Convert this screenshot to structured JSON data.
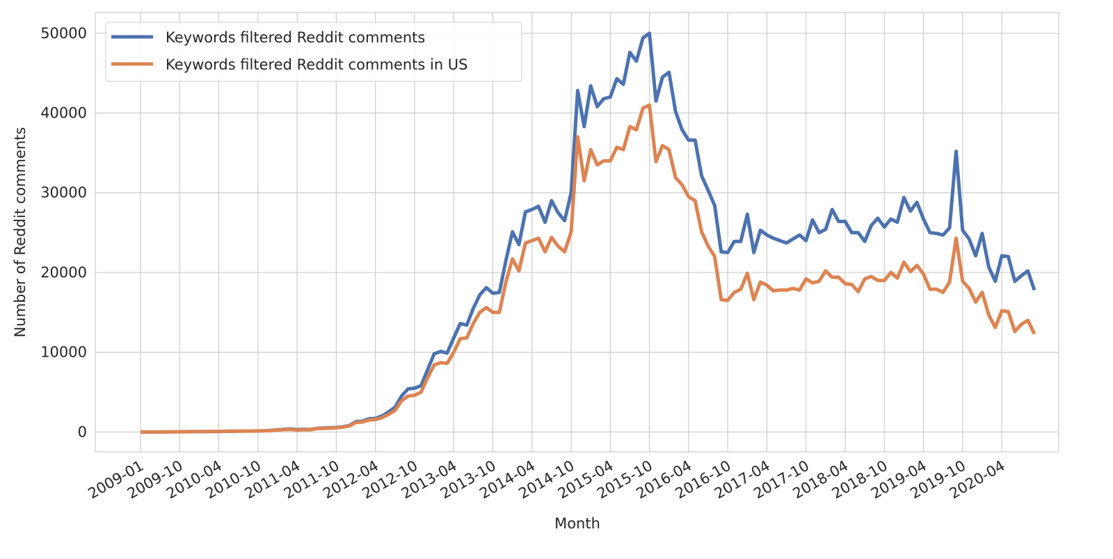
{
  "chart_data": {
    "type": "line",
    "x_label": "Month",
    "y_label": "Number of Reddit comments",
    "categories": [
      "2009-01",
      null,
      null,
      null,
      null,
      null,
      "2009-10",
      null,
      null,
      null,
      null,
      null,
      "2010-04",
      null,
      null,
      null,
      null,
      null,
      "2010-10",
      null,
      null,
      null,
      null,
      null,
      "2011-04",
      null,
      null,
      null,
      null,
      null,
      "2011-10",
      null,
      null,
      null,
      null,
      null,
      "2012-04",
      null,
      null,
      null,
      null,
      null,
      "2012-10",
      null,
      null,
      null,
      null,
      null,
      "2013-04",
      null,
      null,
      null,
      null,
      null,
      "2013-10",
      null,
      null,
      null,
      null,
      null,
      "2014-04",
      null,
      null,
      null,
      null,
      null,
      "2014-10",
      null,
      null,
      null,
      null,
      null,
      "2015-04",
      null,
      null,
      null,
      null,
      null,
      "2015-10",
      null,
      null,
      null,
      null,
      null,
      "2016-04",
      null,
      null,
      null,
      null,
      null,
      "2016-10",
      null,
      null,
      null,
      null,
      null,
      "2017-04",
      null,
      null,
      null,
      null,
      null,
      "2017-10",
      null,
      null,
      null,
      null,
      null,
      "2018-04",
      null,
      null,
      null,
      null,
      null,
      "2018-10",
      null,
      null,
      null,
      null,
      null,
      "2019-04",
      null,
      null,
      null,
      null,
      null,
      "2019-10",
      null,
      null,
      null,
      null,
      null,
      "2020-04",
      null,
      null,
      null,
      null,
      null
    ],
    "series": [
      {
        "name": "Keywords filtered Reddit comments",
        "color": "#4c72b0",
        "values": [
          0,
          0,
          0,
          0,
          10,
          20,
          30,
          40,
          50,
          50,
          50,
          60,
          60,
          80,
          90,
          100,
          110,
          120,
          130,
          150,
          200,
          280,
          330,
          380,
          300,
          350,
          300,
          450,
          500,
          520,
          560,
          650,
          800,
          1300,
          1350,
          1650,
          1700,
          2000,
          2500,
          3100,
          4500,
          5400,
          5500,
          5800,
          7800,
          9800,
          10100,
          9900,
          11800,
          13600,
          13400,
          15500,
          17200,
          18100,
          17400,
          17500,
          21500,
          25100,
          23500,
          27600,
          27900,
          28300,
          26300,
          29000,
          27500,
          26500,
          30000,
          42800,
          38300,
          43400,
          40800,
          41800,
          42000,
          44300,
          43600,
          47600,
          46500,
          49400,
          50000,
          41500,
          44500,
          45100,
          40200,
          37900,
          36600,
          36600,
          32100,
          30300,
          28400,
          22600,
          22500,
          23900,
          23900,
          27300,
          22500,
          25300,
          24700,
          24300,
          24000,
          23700,
          24200,
          24700,
          24000,
          26600,
          25000,
          25400,
          27900,
          26400,
          26400,
          25000,
          25000,
          23900,
          25900,
          26800,
          25700,
          26700,
          26300,
          29400,
          27700,
          28800,
          26700,
          25000,
          24900,
          24700,
          25600,
          35200,
          25300,
          24200,
          22100,
          24900,
          20700,
          18900,
          22100,
          22000,
          18900,
          19600,
          20200,
          17800
        ]
      },
      {
        "name": "Keywords filtered Reddit comments in US",
        "color": "#dd8452",
        "values": [
          0,
          0,
          0,
          0,
          10,
          20,
          30,
          40,
          50,
          50,
          50,
          60,
          60,
          80,
          90,
          100,
          110,
          120,
          130,
          150,
          180,
          250,
          300,
          320,
          250,
          300,
          280,
          420,
          450,
          480,
          520,
          600,
          750,
          1200,
          1250,
          1500,
          1550,
          1800,
          2200,
          2700,
          3900,
          4500,
          4600,
          5000,
          6800,
          8400,
          8700,
          8600,
          10000,
          11700,
          11800,
          13600,
          15000,
          15600,
          15000,
          15000,
          18800,
          21700,
          20200,
          23700,
          24000,
          24300,
          22600,
          24400,
          23300,
          22600,
          25100,
          37000,
          31500,
          35400,
          33500,
          34000,
          34000,
          35700,
          35400,
          38300,
          37900,
          40600,
          41000,
          33900,
          35900,
          35400,
          31900,
          31000,
          29500,
          29000,
          25100,
          23300,
          22000,
          16600,
          16500,
          17500,
          17900,
          19900,
          16600,
          18800,
          18400,
          17700,
          17800,
          17800,
          18000,
          17800,
          19200,
          18700,
          18900,
          20200,
          19400,
          19400,
          18600,
          18500,
          17600,
          19200,
          19500,
          19000,
          19000,
          20000,
          19300,
          21300,
          20100,
          20900,
          19800,
          17900,
          17900,
          17500,
          18800,
          24300,
          18900,
          18000,
          16300,
          17500,
          14700,
          13100,
          15200,
          15100,
          12600,
          13500,
          14000,
          12300
        ]
      }
    ],
    "ylim": [
      -2500,
      52600
    ],
    "yticks": [
      0,
      10000,
      20000,
      30000,
      40000,
      50000
    ],
    "grid": true,
    "legend": "upper left"
  }
}
